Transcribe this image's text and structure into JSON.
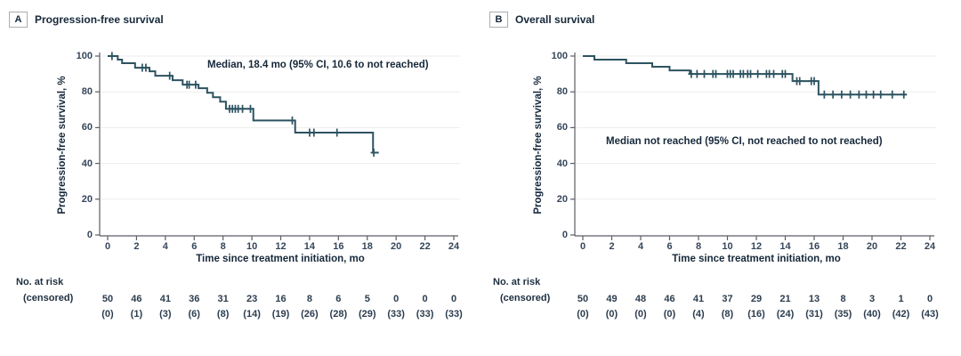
{
  "chart_data": [
    {
      "type": "line",
      "subtype": "kaplan-meier-step",
      "panel": "A",
      "title": "Progression-free survival",
      "annotation": "Median, 18.4 mo (95% CI, 10.6 to not reached)",
      "xlabel": "Time since treatment initiation, mo",
      "ylabel": "Progression-free survival, %",
      "xlim": [
        0,
        24
      ],
      "ylim": [
        0,
        100
      ],
      "xticks": [
        0,
        2,
        4,
        6,
        8,
        10,
        12,
        14,
        16,
        18,
        20,
        22,
        24
      ],
      "yticks": [
        0,
        20,
        40,
        60,
        80,
        100
      ],
      "grid": "horizontal",
      "legend": "none",
      "curve_color": "#2d5361",
      "steps": [
        [
          0.7,
          98
        ],
        [
          1.0,
          96
        ],
        [
          1.9,
          93.5
        ],
        [
          2.9,
          91.5
        ],
        [
          3.3,
          89
        ],
        [
          4.5,
          86.5
        ],
        [
          5.2,
          84
        ],
        [
          6.3,
          82
        ],
        [
          6.9,
          79.5
        ],
        [
          7.3,
          77
        ],
        [
          7.8,
          74.5
        ],
        [
          8.2,
          70.5
        ],
        [
          10.1,
          64
        ],
        [
          13.0,
          57.2
        ],
        [
          18.4,
          46
        ]
      ],
      "curve_start_pct": 100,
      "curve_end_month": 18.8,
      "censors": [
        [
          0.3,
          100
        ],
        [
          2.4,
          93.5
        ],
        [
          2.65,
          93.5
        ],
        [
          4.3,
          89
        ],
        [
          5.5,
          84
        ],
        [
          5.65,
          84
        ],
        [
          6.1,
          84
        ],
        [
          8.45,
          70.5
        ],
        [
          8.65,
          70.5
        ],
        [
          8.85,
          70.5
        ],
        [
          9.05,
          70.5
        ],
        [
          9.35,
          70.5
        ],
        [
          9.9,
          70.5
        ],
        [
          12.8,
          64
        ],
        [
          14.0,
          57.2
        ],
        [
          14.3,
          57.2
        ],
        [
          15.9,
          57.2
        ],
        [
          18.45,
          46
        ]
      ],
      "risk_table": {
        "label_line1": "No. at risk",
        "label_line2": "(censored)",
        "months": [
          0,
          2,
          4,
          6,
          8,
          10,
          12,
          14,
          16,
          18,
          20,
          22,
          24
        ],
        "no_at_risk": [
          "50",
          "46",
          "41",
          "36",
          "31",
          "23",
          "16",
          "8",
          "6",
          "5",
          "0",
          "0",
          "0"
        ],
        "censored_counts": [
          "(0)",
          "(1)",
          "(3)",
          "(6)",
          "(8)",
          "(14)",
          "(19)",
          "(26)",
          "(28)",
          "(29)",
          "(33)",
          "(33)",
          "(33)"
        ]
      }
    },
    {
      "type": "line",
      "subtype": "kaplan-meier-step",
      "panel": "B",
      "title": "Overall survival",
      "annotation": "Median not reached (95% CI, not reached to not reached)",
      "xlabel": "Time since treatment initiation, mo",
      "ylabel": "Progression-free survival, %",
      "xlim": [
        0,
        24
      ],
      "ylim": [
        0,
        100
      ],
      "xticks": [
        0,
        2,
        4,
        6,
        8,
        10,
        12,
        14,
        16,
        18,
        20,
        22,
        24
      ],
      "yticks": [
        0,
        20,
        40,
        60,
        80,
        100
      ],
      "grid": "horizontal",
      "legend": "none",
      "curve_color": "#2d5361",
      "steps": [
        [
          0.8,
          98
        ],
        [
          3.0,
          96
        ],
        [
          4.8,
          94
        ],
        [
          6.0,
          92
        ],
        [
          7.4,
          90
        ],
        [
          14.5,
          86
        ],
        [
          16.3,
          78.5
        ]
      ],
      "curve_start_pct": 100,
      "curve_end_month": 22.4,
      "censors": [
        [
          7.5,
          90
        ],
        [
          7.9,
          90
        ],
        [
          8.4,
          90
        ],
        [
          9.0,
          90
        ],
        [
          9.2,
          90
        ],
        [
          10.0,
          90
        ],
        [
          10.2,
          90
        ],
        [
          10.4,
          90
        ],
        [
          10.9,
          90
        ],
        [
          11.1,
          90
        ],
        [
          11.4,
          90
        ],
        [
          11.6,
          90
        ],
        [
          12.1,
          90
        ],
        [
          12.7,
          90
        ],
        [
          12.9,
          90
        ],
        [
          13.2,
          90
        ],
        [
          13.8,
          90
        ],
        [
          14.0,
          90
        ],
        [
          14.8,
          86
        ],
        [
          15.0,
          86
        ],
        [
          15.8,
          86
        ],
        [
          16.0,
          86
        ],
        [
          16.7,
          78.5
        ],
        [
          17.3,
          78.5
        ],
        [
          17.9,
          78.5
        ],
        [
          18.5,
          78.5
        ],
        [
          19.1,
          78.5
        ],
        [
          19.6,
          78.5
        ],
        [
          20.1,
          78.5
        ],
        [
          20.6,
          78.5
        ],
        [
          21.4,
          78.5
        ],
        [
          22.2,
          78.5
        ]
      ],
      "risk_table": {
        "label_line1": "No. at risk",
        "label_line2": "(censored)",
        "months": [
          0,
          2,
          4,
          6,
          8,
          10,
          12,
          14,
          16,
          18,
          20,
          22,
          24
        ],
        "no_at_risk": [
          "50",
          "49",
          "48",
          "46",
          "41",
          "37",
          "29",
          "21",
          "13",
          "8",
          "3",
          "1",
          "0"
        ],
        "censored_counts": [
          "(0)",
          "(0)",
          "(0)",
          "(0)",
          "(4)",
          "(8)",
          "(16)",
          "(24)",
          "(31)",
          "(35)",
          "(40)",
          "(42)",
          "(43)"
        ]
      }
    }
  ],
  "style_colors": {
    "curve": "#2d5361",
    "grid": "#ededee",
    "axis": "#5b5e63",
    "title_text": "#16283a",
    "tick_text": "#35465a"
  }
}
